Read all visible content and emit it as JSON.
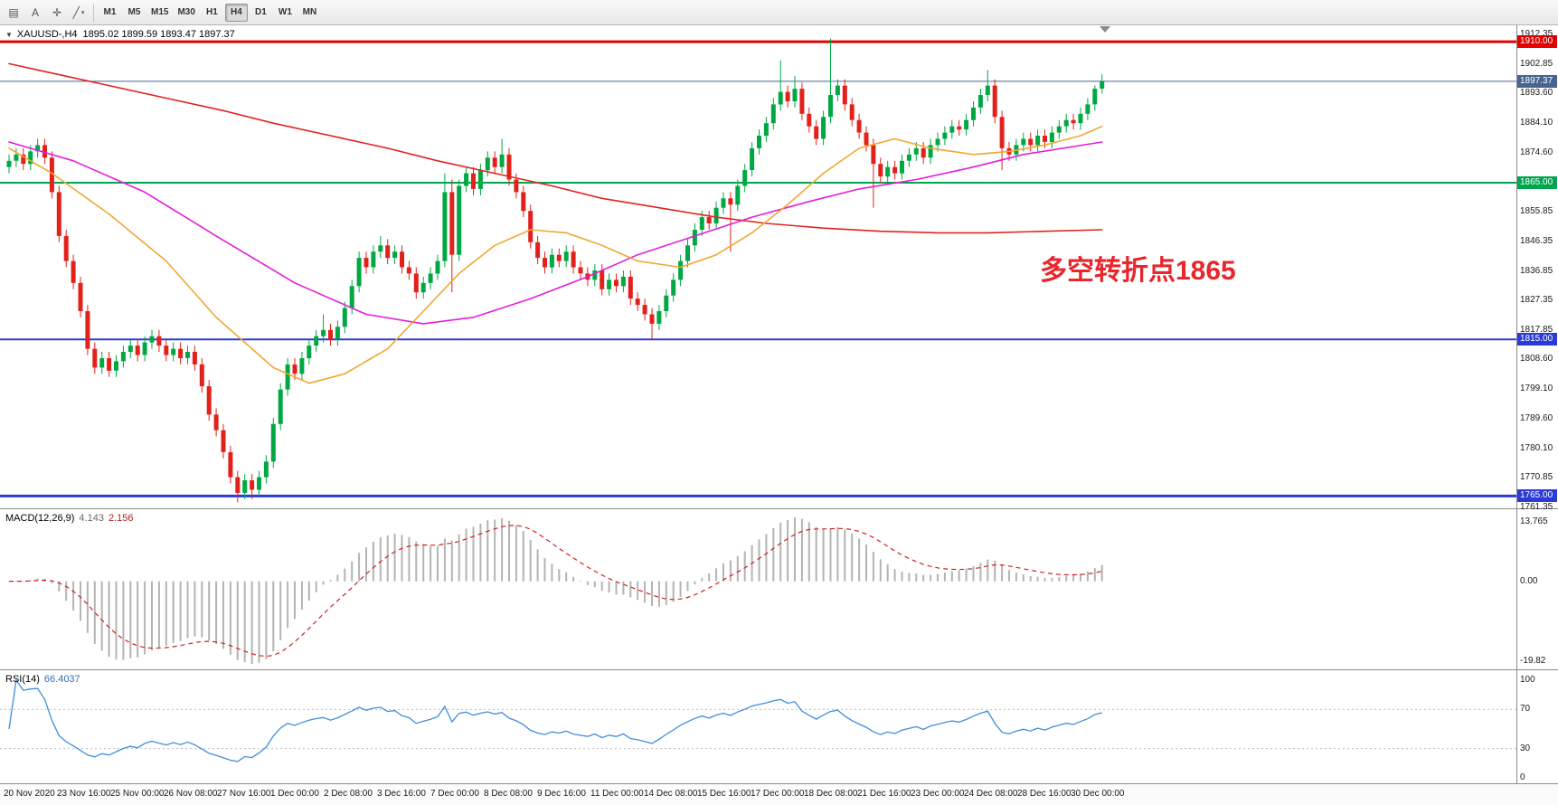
{
  "toolbar": {
    "icons": [
      {
        "name": "chart-window-icon",
        "glyph": "▤"
      },
      {
        "name": "text-label-icon",
        "glyph": "A"
      },
      {
        "name": "crosshair-icon",
        "glyph": "✛"
      },
      {
        "name": "draw-tools-icon",
        "glyph": "╱",
        "dropdown": "▾"
      }
    ],
    "timeframes": {
      "items": [
        "M1",
        "M5",
        "M15",
        "M30",
        "H1",
        "H4",
        "D1",
        "W1",
        "MN"
      ],
      "selected": "H4"
    }
  },
  "chart": {
    "title": {
      "collapse_glyph": "▼",
      "symbol": "XAUUSD-,H4",
      "ohlc": "1895.02 1899.59 1893.47 1897.37"
    },
    "annotation": {
      "text": "多空转折点1865",
      "color": "#e8262c"
    },
    "price_axis_labels": [
      "1912.35",
      "1902.85",
      "1893.60",
      "1884.10",
      "1874.60",
      "1855.85",
      "1846.35",
      "1836.85",
      "1827.35",
      "1817.85",
      "1808.60",
      "1799.10",
      "1789.60",
      "1780.10",
      "1770.85",
      "1761.35"
    ],
    "levels": [
      {
        "price": 1910.0,
        "label": "1910.00",
        "color": "#e00000",
        "width": 3
      },
      {
        "price": 1897.37,
        "label": "1897.37",
        "color": "#46648f",
        "width": 1
      },
      {
        "price": 1865.0,
        "label": "1865.00",
        "color": "#00a550",
        "width": 2
      },
      {
        "price": 1815.0,
        "label": "1815.00",
        "color": "#2c3bd6",
        "width": 2
      },
      {
        "price": 1765.0,
        "label": "1765.00",
        "color": "#2c3bd6",
        "width": 3
      }
    ]
  },
  "chart_data": {
    "type": "candlestick",
    "symbol": "XAUUSD",
    "timeframe": "H4",
    "current_bar": {
      "open": 1895.02,
      "high": 1899.59,
      "low": 1893.47,
      "close": 1897.37
    },
    "price_axis_range": [
      1761.35,
      1912.35
    ],
    "candles": [
      [
        1870,
        1874,
        1868,
        1872
      ],
      [
        1872,
        1876,
        1870,
        1874
      ],
      [
        1874,
        1876,
        1869,
        1871
      ],
      [
        1871,
        1877,
        1869,
        1875
      ],
      [
        1875,
        1879,
        1873,
        1877
      ],
      [
        1877,
        1879,
        1871,
        1873
      ],
      [
        1873,
        1875,
        1860,
        1862
      ],
      [
        1862,
        1864,
        1846,
        1848
      ],
      [
        1848,
        1850,
        1838,
        1840
      ],
      [
        1840,
        1842,
        1831,
        1833
      ],
      [
        1833,
        1835,
        1822,
        1824
      ],
      [
        1824,
        1826,
        1810,
        1812
      ],
      [
        1812,
        1814,
        1804,
        1806
      ],
      [
        1806,
        1811,
        1804,
        1809
      ],
      [
        1809,
        1811,
        1803,
        1805
      ],
      [
        1805,
        1810,
        1803,
        1808
      ],
      [
        1808,
        1813,
        1806,
        1811
      ],
      [
        1811,
        1815,
        1809,
        1813
      ],
      [
        1813,
        1815,
        1808,
        1810
      ],
      [
        1810,
        1816,
        1808,
        1814
      ],
      [
        1814,
        1818,
        1812,
        1816
      ],
      [
        1816,
        1818,
        1811,
        1813
      ],
      [
        1813,
        1815,
        1808,
        1810
      ],
      [
        1810,
        1814,
        1808,
        1812
      ],
      [
        1812,
        1814,
        1807,
        1809
      ],
      [
        1809,
        1813,
        1807,
        1811
      ],
      [
        1811,
        1813,
        1805,
        1807
      ],
      [
        1807,
        1809,
        1798,
        1800
      ],
      [
        1800,
        1802,
        1789,
        1791
      ],
      [
        1791,
        1793,
        1784,
        1786
      ],
      [
        1786,
        1788,
        1777,
        1779
      ],
      [
        1779,
        1781,
        1769,
        1771
      ],
      [
        1771,
        1773,
        1763,
        1766
      ],
      [
        1766,
        1772,
        1764,
        1770
      ],
      [
        1770,
        1772,
        1764,
        1767
      ],
      [
        1767,
        1773,
        1765,
        1771
      ],
      [
        1771,
        1778,
        1769,
        1776
      ],
      [
        1776,
        1790,
        1774,
        1788
      ],
      [
        1788,
        1801,
        1786,
        1799
      ],
      [
        1799,
        1809,
        1797,
        1807
      ],
      [
        1807,
        1809,
        1802,
        1804
      ],
      [
        1804,
        1811,
        1802,
        1809
      ],
      [
        1809,
        1815,
        1807,
        1813
      ],
      [
        1813,
        1818,
        1811,
        1816
      ],
      [
        1816,
        1823,
        1814,
        1818
      ],
      [
        1818,
        1820,
        1813,
        1815
      ],
      [
        1815,
        1821,
        1813,
        1819
      ],
      [
        1819,
        1827,
        1817,
        1825
      ],
      [
        1825,
        1834,
        1823,
        1832
      ],
      [
        1832,
        1843,
        1830,
        1841
      ],
      [
        1841,
        1843,
        1836,
        1838
      ],
      [
        1838,
        1845,
        1836,
        1843
      ],
      [
        1843,
        1848,
        1841,
        1845
      ],
      [
        1845,
        1847,
        1839,
        1841
      ],
      [
        1841,
        1845,
        1839,
        1843
      ],
      [
        1843,
        1845,
        1836,
        1838
      ],
      [
        1838,
        1840,
        1834,
        1836
      ],
      [
        1836,
        1838,
        1828,
        1830
      ],
      [
        1830,
        1835,
        1828,
        1833
      ],
      [
        1833,
        1838,
        1831,
        1836
      ],
      [
        1836,
        1842,
        1834,
        1840
      ],
      [
        1840,
        1868,
        1838,
        1862
      ],
      [
        1862,
        1866,
        1830,
        1842
      ],
      [
        1842,
        1866,
        1840,
        1864
      ],
      [
        1864,
        1870,
        1862,
        1868
      ],
      [
        1868,
        1870,
        1861,
        1863
      ],
      [
        1863,
        1871,
        1861,
        1869
      ],
      [
        1869,
        1875,
        1867,
        1873
      ],
      [
        1873,
        1875,
        1868,
        1870
      ],
      [
        1870,
        1879,
        1868,
        1874
      ],
      [
        1874,
        1876,
        1864,
        1866
      ],
      [
        1866,
        1868,
        1860,
        1862
      ],
      [
        1862,
        1864,
        1854,
        1856
      ],
      [
        1856,
        1858,
        1844,
        1846
      ],
      [
        1846,
        1848,
        1839,
        1841
      ],
      [
        1841,
        1843,
        1836,
        1838
      ],
      [
        1838,
        1844,
        1836,
        1842
      ],
      [
        1842,
        1844,
        1838,
        1840
      ],
      [
        1840,
        1845,
        1838,
        1843
      ],
      [
        1843,
        1845,
        1836,
        1838
      ],
      [
        1838,
        1840,
        1834,
        1836
      ],
      [
        1836,
        1838,
        1832,
        1834
      ],
      [
        1834,
        1839,
        1832,
        1837
      ],
      [
        1837,
        1839,
        1829,
        1831
      ],
      [
        1831,
        1836,
        1829,
        1834
      ],
      [
        1834,
        1836,
        1830,
        1832
      ],
      [
        1832,
        1837,
        1830,
        1835
      ],
      [
        1835,
        1837,
        1826,
        1828
      ],
      [
        1828,
        1830,
        1824,
        1826
      ],
      [
        1826,
        1828,
        1821,
        1823
      ],
      [
        1823,
        1825,
        1815,
        1820
      ],
      [
        1820,
        1826,
        1818,
        1824
      ],
      [
        1824,
        1831,
        1822,
        1829
      ],
      [
        1829,
        1836,
        1827,
        1834
      ],
      [
        1834,
        1842,
        1832,
        1840
      ],
      [
        1840,
        1847,
        1838,
        1845
      ],
      [
        1845,
        1852,
        1843,
        1850
      ],
      [
        1850,
        1856,
        1848,
        1854
      ],
      [
        1854,
        1856,
        1850,
        1852
      ],
      [
        1852,
        1859,
        1850,
        1857
      ],
      [
        1857,
        1862,
        1855,
        1860
      ],
      [
        1860,
        1862,
        1843,
        1858
      ],
      [
        1858,
        1866,
        1856,
        1864
      ],
      [
        1864,
        1871,
        1862,
        1869
      ],
      [
        1869,
        1878,
        1867,
        1876
      ],
      [
        1876,
        1882,
        1874,
        1880
      ],
      [
        1880,
        1886,
        1878,
        1884
      ],
      [
        1884,
        1892,
        1882,
        1890
      ],
      [
        1890,
        1904,
        1888,
        1894
      ],
      [
        1894,
        1896,
        1889,
        1891
      ],
      [
        1891,
        1899,
        1889,
        1895
      ],
      [
        1895,
        1897,
        1885,
        1887
      ],
      [
        1887,
        1889,
        1881,
        1883
      ],
      [
        1883,
        1885,
        1877,
        1879
      ],
      [
        1879,
        1888,
        1877,
        1886
      ],
      [
        1886,
        1911,
        1884,
        1893
      ],
      [
        1893,
        1898,
        1891,
        1896
      ],
      [
        1896,
        1898,
        1888,
        1890
      ],
      [
        1890,
        1892,
        1883,
        1885
      ],
      [
        1885,
        1887,
        1879,
        1881
      ],
      [
        1881,
        1883,
        1875,
        1877
      ],
      [
        1877,
        1879,
        1857,
        1871
      ],
      [
        1871,
        1873,
        1865,
        1867
      ],
      [
        1867,
        1872,
        1865,
        1870
      ],
      [
        1870,
        1872,
        1866,
        1868
      ],
      [
        1868,
        1874,
        1866,
        1872
      ],
      [
        1872,
        1876,
        1870,
        1874
      ],
      [
        1874,
        1878,
        1872,
        1876
      ],
      [
        1876,
        1878,
        1871,
        1873
      ],
      [
        1873,
        1879,
        1871,
        1877
      ],
      [
        1877,
        1881,
        1875,
        1879
      ],
      [
        1879,
        1883,
        1877,
        1881
      ],
      [
        1881,
        1885,
        1879,
        1883
      ],
      [
        1883,
        1885,
        1880,
        1882
      ],
      [
        1882,
        1887,
        1880,
        1885
      ],
      [
        1885,
        1891,
        1883,
        1889
      ],
      [
        1889,
        1895,
        1887,
        1893
      ],
      [
        1893,
        1901,
        1891,
        1896
      ],
      [
        1896,
        1898,
        1884,
        1886
      ],
      [
        1886,
        1888,
        1869,
        1876
      ],
      [
        1876,
        1878,
        1872,
        1874
      ],
      [
        1874,
        1879,
        1872,
        1877
      ],
      [
        1877,
        1881,
        1875,
        1879
      ],
      [
        1879,
        1881,
        1875,
        1877
      ],
      [
        1877,
        1882,
        1875,
        1880
      ],
      [
        1880,
        1882,
        1876,
        1878
      ],
      [
        1878,
        1883,
        1876,
        1881
      ],
      [
        1881,
        1885,
        1879,
        1883
      ],
      [
        1883,
        1887,
        1881,
        1885
      ],
      [
        1885,
        1887,
        1882,
        1884
      ],
      [
        1884,
        1889,
        1882,
        1887
      ],
      [
        1887,
        1892,
        1885,
        1890
      ],
      [
        1890,
        1896,
        1888,
        1895
      ],
      [
        1895.02,
        1899.59,
        1893.47,
        1897.37
      ]
    ],
    "overlays": [
      {
        "name": "ma-slow",
        "color": "#e0241f",
        "points": [
          [
            0,
            1903
          ],
          [
            6,
            1900
          ],
          [
            14,
            1896
          ],
          [
            22,
            1892
          ],
          [
            30,
            1888
          ],
          [
            37,
            1884
          ],
          [
            45,
            1880
          ],
          [
            53,
            1876
          ],
          [
            60,
            1872
          ],
          [
            68,
            1868
          ],
          [
            76,
            1864
          ],
          [
            83,
            1860
          ],
          [
            91,
            1857
          ],
          [
            99,
            1854
          ],
          [
            106,
            1852
          ],
          [
            114,
            1850.5
          ],
          [
            122,
            1849.5
          ],
          [
            130,
            1849
          ],
          [
            137,
            1849
          ],
          [
            145,
            1849.5
          ],
          [
            153,
            1850
          ]
        ]
      },
      {
        "name": "ma-mid",
        "color": "#e31ed9",
        "points": [
          [
            0,
            1878
          ],
          [
            9,
            1872
          ],
          [
            19,
            1862
          ],
          [
            29,
            1848
          ],
          [
            40,
            1833
          ],
          [
            50,
            1823
          ],
          [
            58,
            1820
          ],
          [
            65,
            1822
          ],
          [
            73,
            1828
          ],
          [
            81,
            1835
          ],
          [
            88,
            1842
          ],
          [
            96,
            1848
          ],
          [
            104,
            1854
          ],
          [
            112,
            1859
          ],
          [
            119,
            1863
          ],
          [
            127,
            1866
          ],
          [
            135,
            1870
          ],
          [
            142,
            1874
          ],
          [
            153,
            1878
          ]
        ]
      },
      {
        "name": "ma-fast",
        "color": "#efa733",
        "points": [
          [
            0,
            1876
          ],
          [
            6,
            1868
          ],
          [
            14,
            1855
          ],
          [
            22,
            1840
          ],
          [
            29,
            1822
          ],
          [
            37,
            1806
          ],
          [
            42,
            1801
          ],
          [
            47,
            1804
          ],
          [
            53,
            1812
          ],
          [
            58,
            1824
          ],
          [
            63,
            1836
          ],
          [
            68,
            1845
          ],
          [
            73,
            1850
          ],
          [
            78,
            1849
          ],
          [
            83,
            1845
          ],
          [
            88,
            1840
          ],
          [
            94,
            1838
          ],
          [
            99,
            1842
          ],
          [
            104,
            1849
          ],
          [
            109,
            1858
          ],
          [
            114,
            1868
          ],
          [
            119,
            1876
          ],
          [
            124,
            1879
          ],
          [
            129,
            1876
          ],
          [
            135,
            1874
          ],
          [
            140,
            1875
          ],
          [
            145,
            1877
          ],
          [
            150,
            1880
          ],
          [
            153,
            1883
          ]
        ]
      }
    ],
    "macd": {
      "label": "MACD(12,26,9)",
      "value_main": "4.143",
      "value_signal": "2.156",
      "fast": 12,
      "slow": 26,
      "signal": 9,
      "axis": [
        "13.765",
        "0.00",
        "-19.82"
      ]
    },
    "rsi": {
      "label": "RSI(14)",
      "value": "66.4037",
      "period": 14,
      "axis": [
        "100",
        "70",
        "30",
        "0"
      ],
      "guide_levels": [
        70,
        30
      ]
    },
    "time_axis": [
      "20 Nov 2020",
      "23 Nov 16:00",
      "25 Nov 00:00",
      "26 Nov 08:00",
      "27 Nov 16:00",
      "1 Dec 00:00",
      "2 Dec 08:00",
      "3 Dec 16:00",
      "7 Dec 00:00",
      "8 Dec 08:00",
      "9 Dec 16:00",
      "11 Dec 00:00",
      "14 Dec 08:00",
      "15 Dec 16:00",
      "17 Dec 00:00",
      "18 Dec 08:00",
      "21 Dec 16:00",
      "23 Dec 00:00",
      "24 Dec 08:00",
      "28 Dec 16:00",
      "30 Dec 00:00"
    ]
  },
  "colors": {
    "up": "#00a843",
    "down": "#e3211b",
    "macd_hist": "#b4b4b4",
    "macd_signal": "#d42020",
    "rsi_line": "#3f8fdc",
    "grid_guide": "#bdbdbd",
    "separator": "#8c8c8c",
    "shift_marker": "#8a8a8a"
  }
}
